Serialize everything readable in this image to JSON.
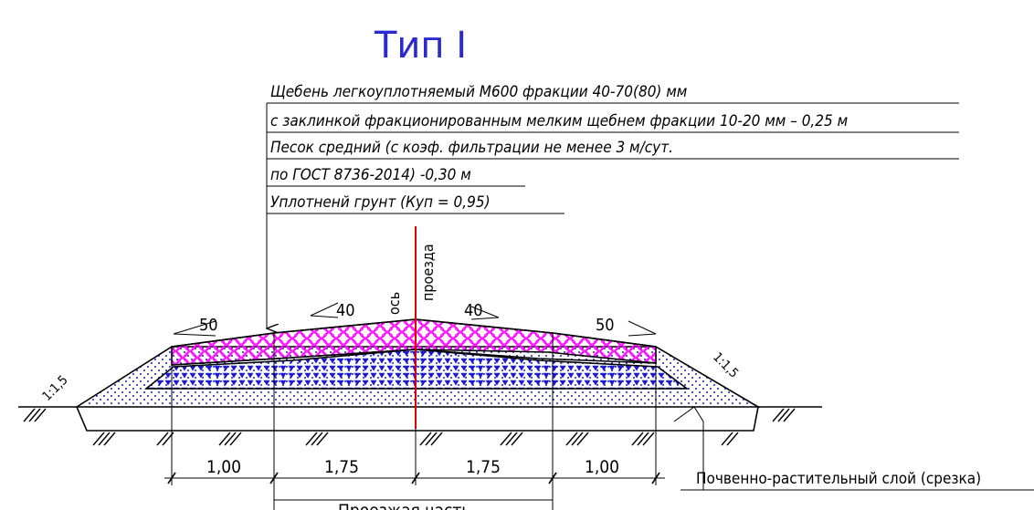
{
  "title": "Тип I",
  "layers": {
    "line1": "Щебень легкоуплотняемый М600 фракции 40-70(80) мм",
    "line2": "с заклинкой фракционированным мелким щебнем фракции 10-20 мм – 0,25 м",
    "line3": "Песок средний (с коэф. фильтрации не менее 3 м/сут.",
    "line4": "по ГОСТ 8736-2014) -0,30 м",
    "line5": "Уплотненй грунт (Куп = 0,95)"
  },
  "axis_label": {
    "line1": "ось",
    "line2": "проезда"
  },
  "slopes": {
    "left_outer": "50",
    "left_inner": "40",
    "right_inner": "40",
    "right_outer": "50",
    "embankment_left": "1:1,5",
    "embankment_right": "1:1,5"
  },
  "dimensions": {
    "d1": "1,00",
    "d2": "1,75",
    "d3": "1,75",
    "d4": "1,00"
  },
  "soil_layer_label": "Почвенно-растительный слой (срезка)",
  "carriageway_label": "Проезжая часть",
  "colors": {
    "title": "#2a2ad0",
    "crushed_stone": "#ff00ff",
    "sand": "#1a1ad8",
    "axis": "#e00000"
  }
}
